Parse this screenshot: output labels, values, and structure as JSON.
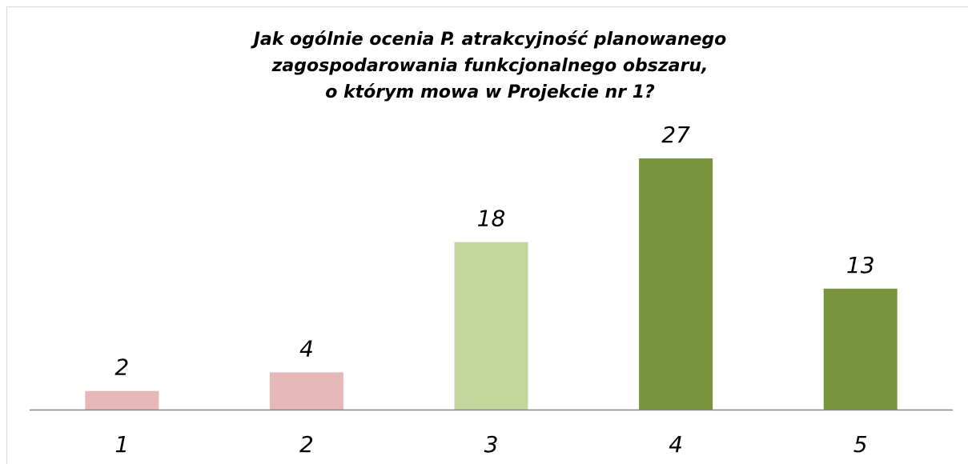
{
  "chart_data": {
    "type": "bar",
    "title": [
      "Jak ogólnie ocenia P. atrakcyjność planowanego",
      "zagospodarowania funkcjonalnego obszaru,",
      "o którym mowa w Projekcie nr 1?"
    ],
    "categories": [
      "1",
      "2",
      "3",
      "4",
      "5"
    ],
    "values": [
      2,
      4,
      18,
      27,
      13
    ],
    "colors": [
      "#e6b9b8",
      "#e6b9b8",
      "#c3d69b",
      "#77933c",
      "#77933c"
    ]
  }
}
